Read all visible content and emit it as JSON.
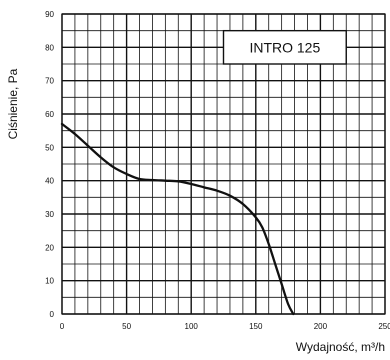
{
  "chart_data": {
    "type": "line",
    "xlabel": "Wydajność, m³/h",
    "ylabel": "Ciśnienie, Pa",
    "xlim": [
      0,
      250
    ],
    "ylim": [
      0,
      90
    ],
    "grid": true,
    "x_ticks": [
      "0",
      "50",
      "100",
      "150",
      "200",
      "250"
    ],
    "y_ticks": [
      "0",
      "10",
      "20",
      "30",
      "40",
      "50",
      "60",
      "70",
      "80",
      "90"
    ],
    "legend_label": "INTRO 125",
    "legend_position": "top-right",
    "series": [
      {
        "name": "INTRO 125",
        "color": "#111111",
        "points": [
          [
            0,
            57
          ],
          [
            10,
            54
          ],
          [
            20,
            50.5
          ],
          [
            30,
            47
          ],
          [
            40,
            44
          ],
          [
            50,
            42
          ],
          [
            60,
            40.5
          ],
          [
            70,
            40.2
          ],
          [
            80,
            40
          ],
          [
            90,
            39.8
          ],
          [
            100,
            39
          ],
          [
            110,
            38
          ],
          [
            120,
            37
          ],
          [
            130,
            35.5
          ],
          [
            140,
            33
          ],
          [
            150,
            29
          ],
          [
            155,
            26
          ],
          [
            160,
            21
          ],
          [
            165,
            15
          ],
          [
            170,
            9
          ],
          [
            175,
            3
          ],
          [
            179,
            0
          ]
        ]
      }
    ]
  }
}
